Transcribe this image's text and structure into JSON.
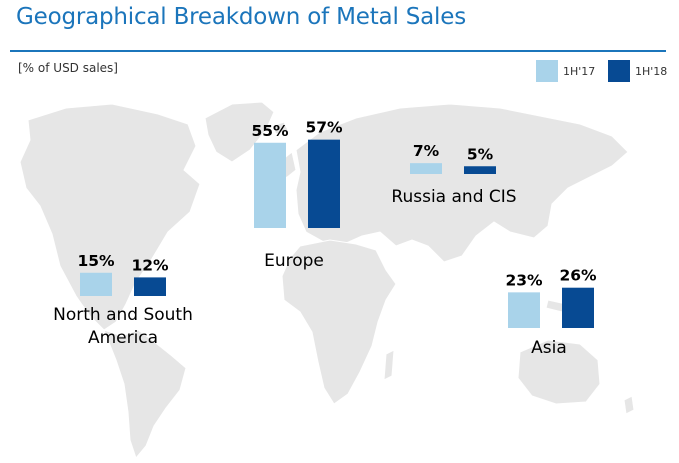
{
  "header": {
    "title": "Geographical Breakdown of Metal Sales",
    "unit_label": "[% of USD sales]"
  },
  "colors": {
    "accent": "#1b75bb",
    "series_1": "#a9d3ea",
    "series_2": "#074a93",
    "map": "#e6e6e6"
  },
  "chart_data": {
    "type": "bar",
    "title": "Geographical Breakdown of Metal Sales",
    "ylabel": "[% of USD sales]",
    "legend_position": "top-right",
    "legend": [
      "1H'17",
      "1H'18"
    ],
    "categories": [
      "North and South America",
      "Europe",
      "Russia and CIS",
      "Asia"
    ],
    "category_label_lines": [
      [
        "North and South",
        "America"
      ],
      [
        "Europe"
      ],
      [
        "Russia and CIS"
      ],
      [
        "Asia"
      ]
    ],
    "series": [
      {
        "name": "1H'17",
        "values": [
          15,
          55,
          7,
          23
        ],
        "labels": [
          "15%",
          "55%",
          "7%",
          "23%"
        ]
      },
      {
        "name": "1H'18",
        "values": [
          12,
          57,
          5,
          26
        ],
        "labels": [
          "12%",
          "57%",
          "5%",
          "26%"
        ]
      }
    ],
    "unit": "%"
  }
}
